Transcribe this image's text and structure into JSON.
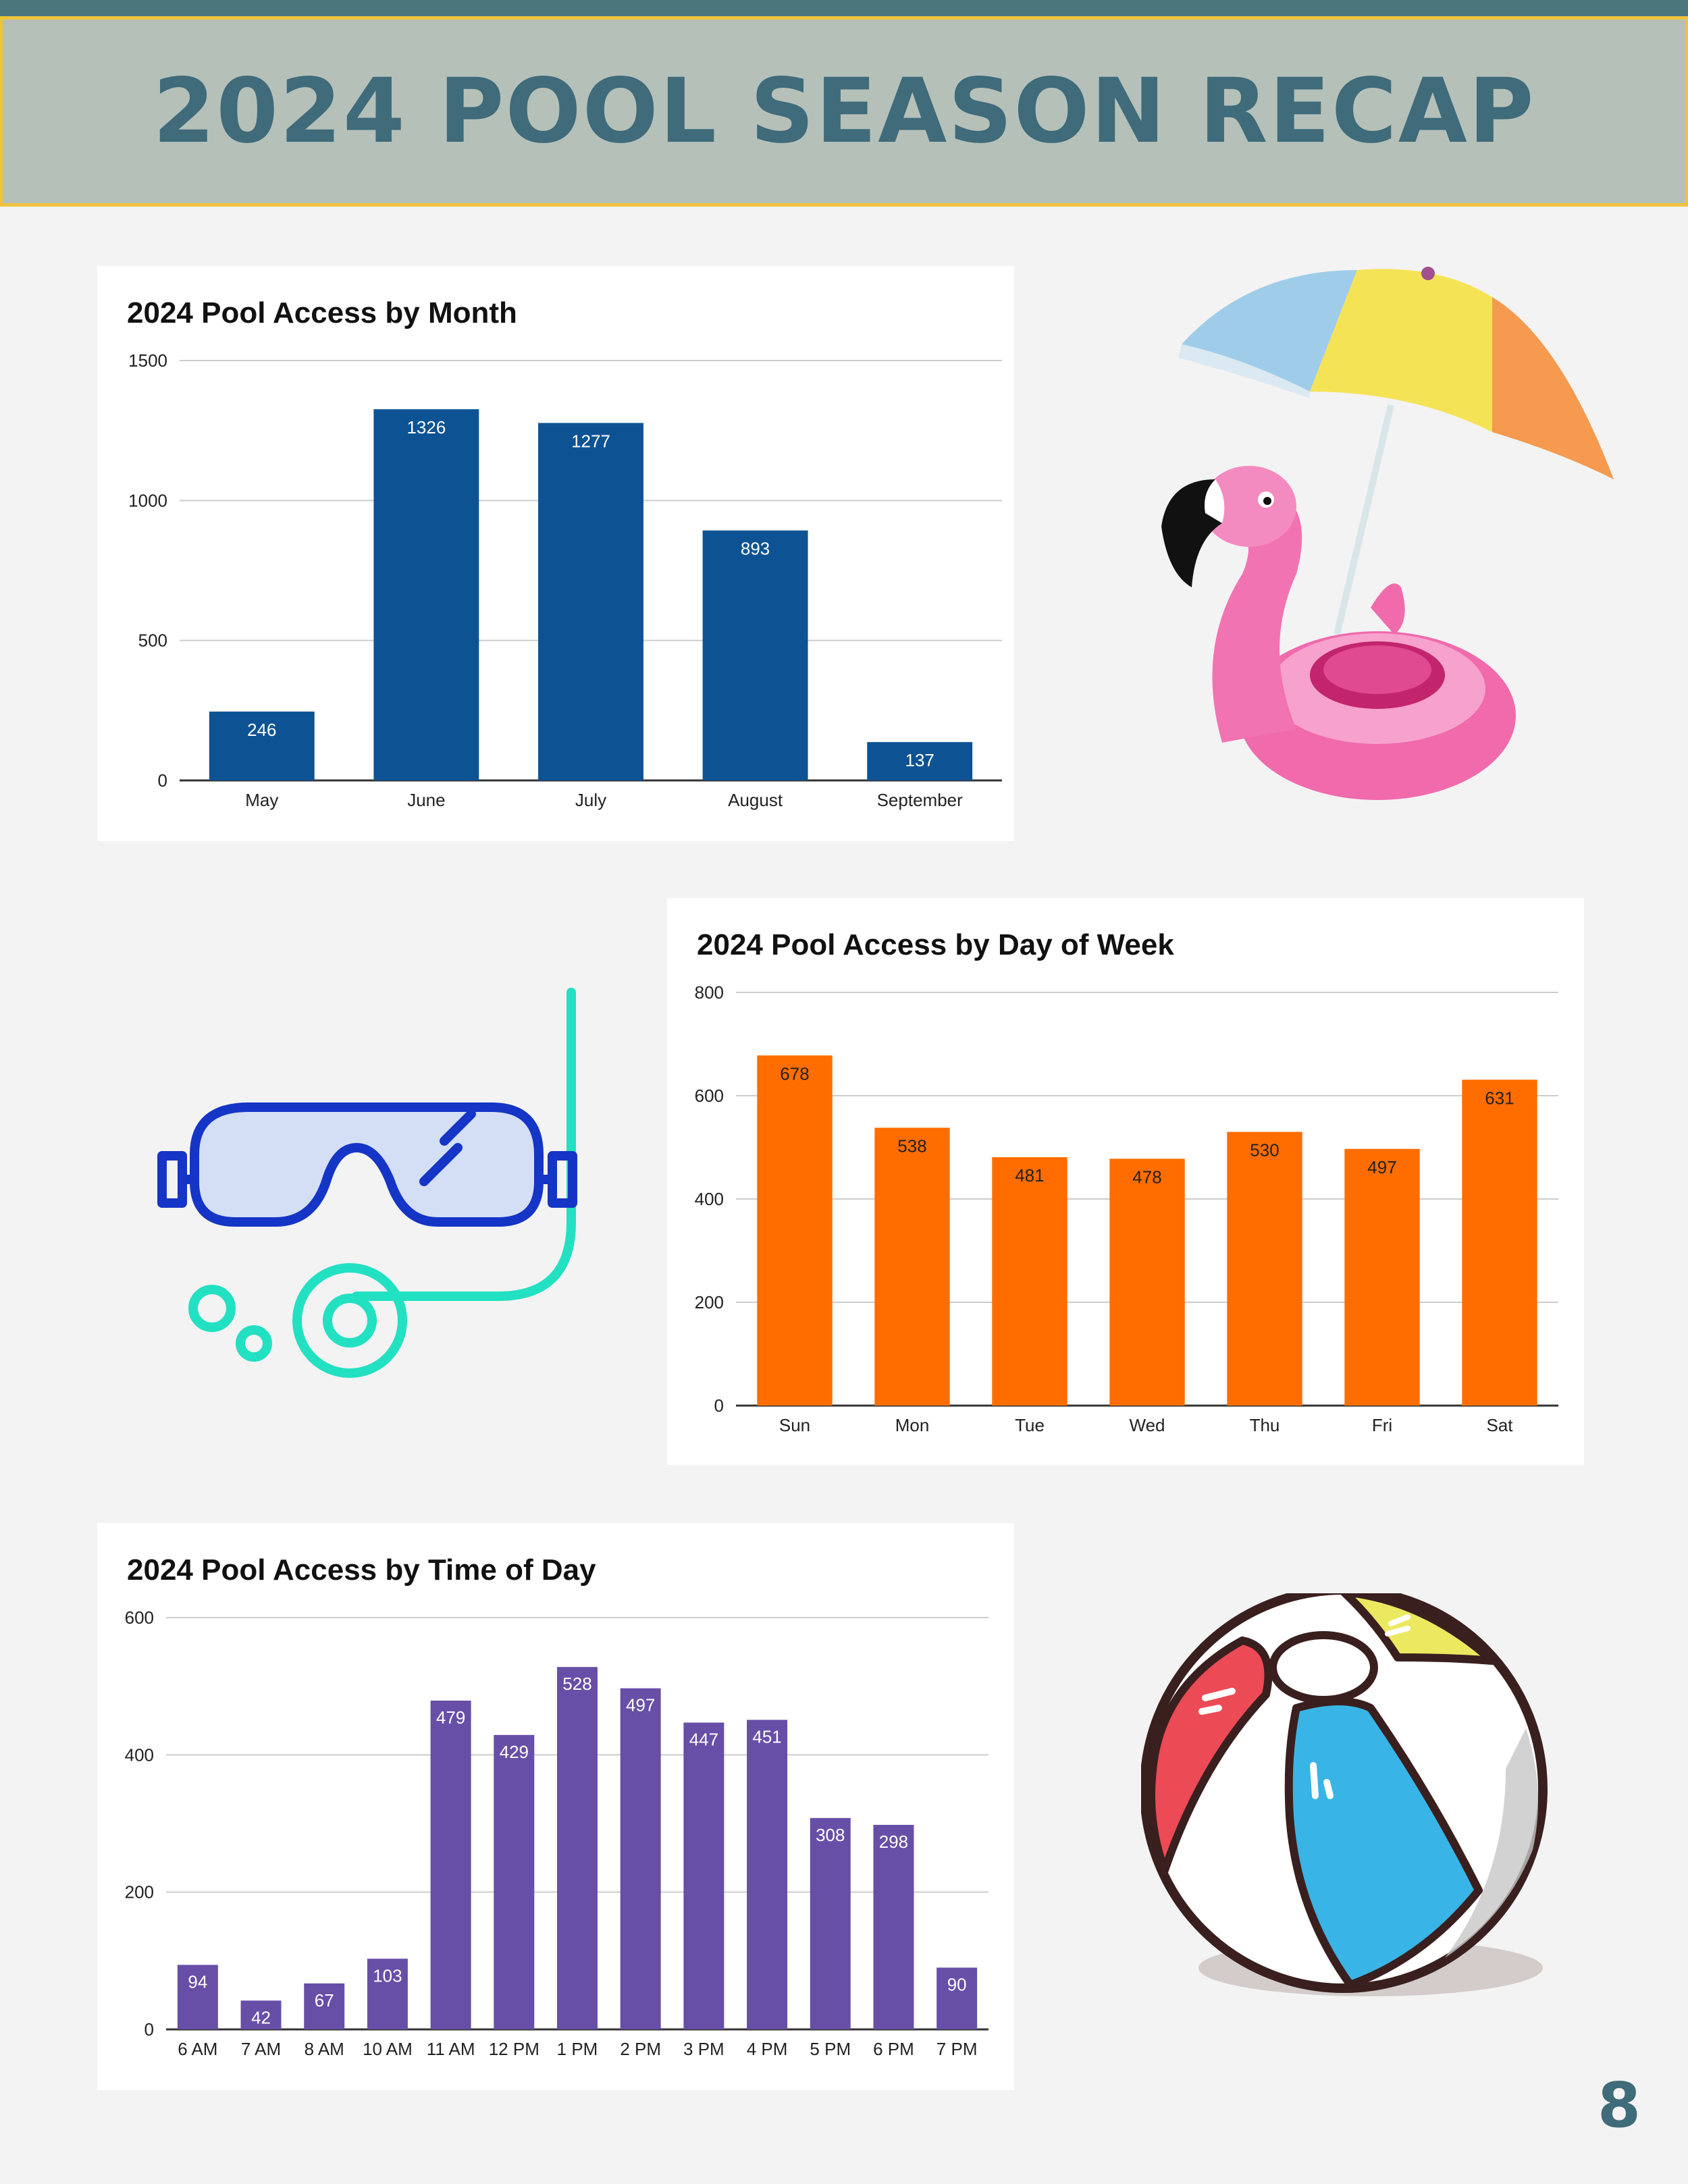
{
  "page": {
    "title": "2024 POOL SEASON RECAP",
    "page_number": "8",
    "colors": {
      "banner": "#b5c0b9",
      "banner_border": "#f0c43a",
      "title": "#3f6b7a",
      "strip": "#4b767c"
    }
  },
  "illustrations": {
    "umbrella_flamingo": "beach-umbrella-and-flamingo-float",
    "snorkel": "snorkel-mask",
    "beach_ball": "beach-ball"
  },
  "chart_data": [
    {
      "type": "bar",
      "title": "2024 Pool Access by Month",
      "categories": [
        "May",
        "June",
        "July",
        "August",
        "September"
      ],
      "values": [
        246,
        1326,
        1277,
        893,
        137
      ],
      "ylim": [
        0,
        1500
      ],
      "yticks": [
        "0",
        "500",
        "1000",
        "1500"
      ],
      "grid": true,
      "color": "#0d5394",
      "label_color": "#ffffff",
      "labels": [
        "246",
        "1326",
        "1277",
        "893",
        "137"
      ]
    },
    {
      "type": "bar",
      "title": "2024 Pool Access by Day of Week",
      "categories": [
        "Sun",
        "Mon",
        "Tue",
        "Wed",
        "Thu",
        "Fri",
        "Sat"
      ],
      "values": [
        678,
        538,
        481,
        478,
        530,
        497,
        631
      ],
      "ylim": [
        0,
        800
      ],
      "yticks": [
        "0",
        "200",
        "400",
        "600",
        "800"
      ],
      "grid": true,
      "color": "#ff6d01",
      "label_color": "#222222",
      "labels": [
        "678",
        "538",
        "481",
        "478",
        "530",
        "497",
        "631"
      ]
    },
    {
      "type": "bar",
      "title": "2024 Pool Access by Time of Day",
      "categories": [
        "6 AM",
        "7 AM",
        "8 AM",
        "10 AM",
        "11 AM",
        "12 PM",
        "1 PM",
        "2 PM",
        "3 PM",
        "4 PM",
        "5 PM",
        "6 PM",
        "7 PM"
      ],
      "values": [
        94,
        42,
        67,
        103,
        479,
        429,
        528,
        497,
        447,
        451,
        308,
        298,
        90
      ],
      "ylim": [
        0,
        600
      ],
      "yticks": [
        "0",
        "200",
        "400",
        "600"
      ],
      "grid": true,
      "color": "#674ea7",
      "label_color": "#ffffff",
      "labels": [
        "94",
        "42",
        "67",
        "103",
        "479",
        "429",
        "528",
        "497",
        "447",
        "451",
        "308",
        "298",
        "90"
      ]
    }
  ]
}
